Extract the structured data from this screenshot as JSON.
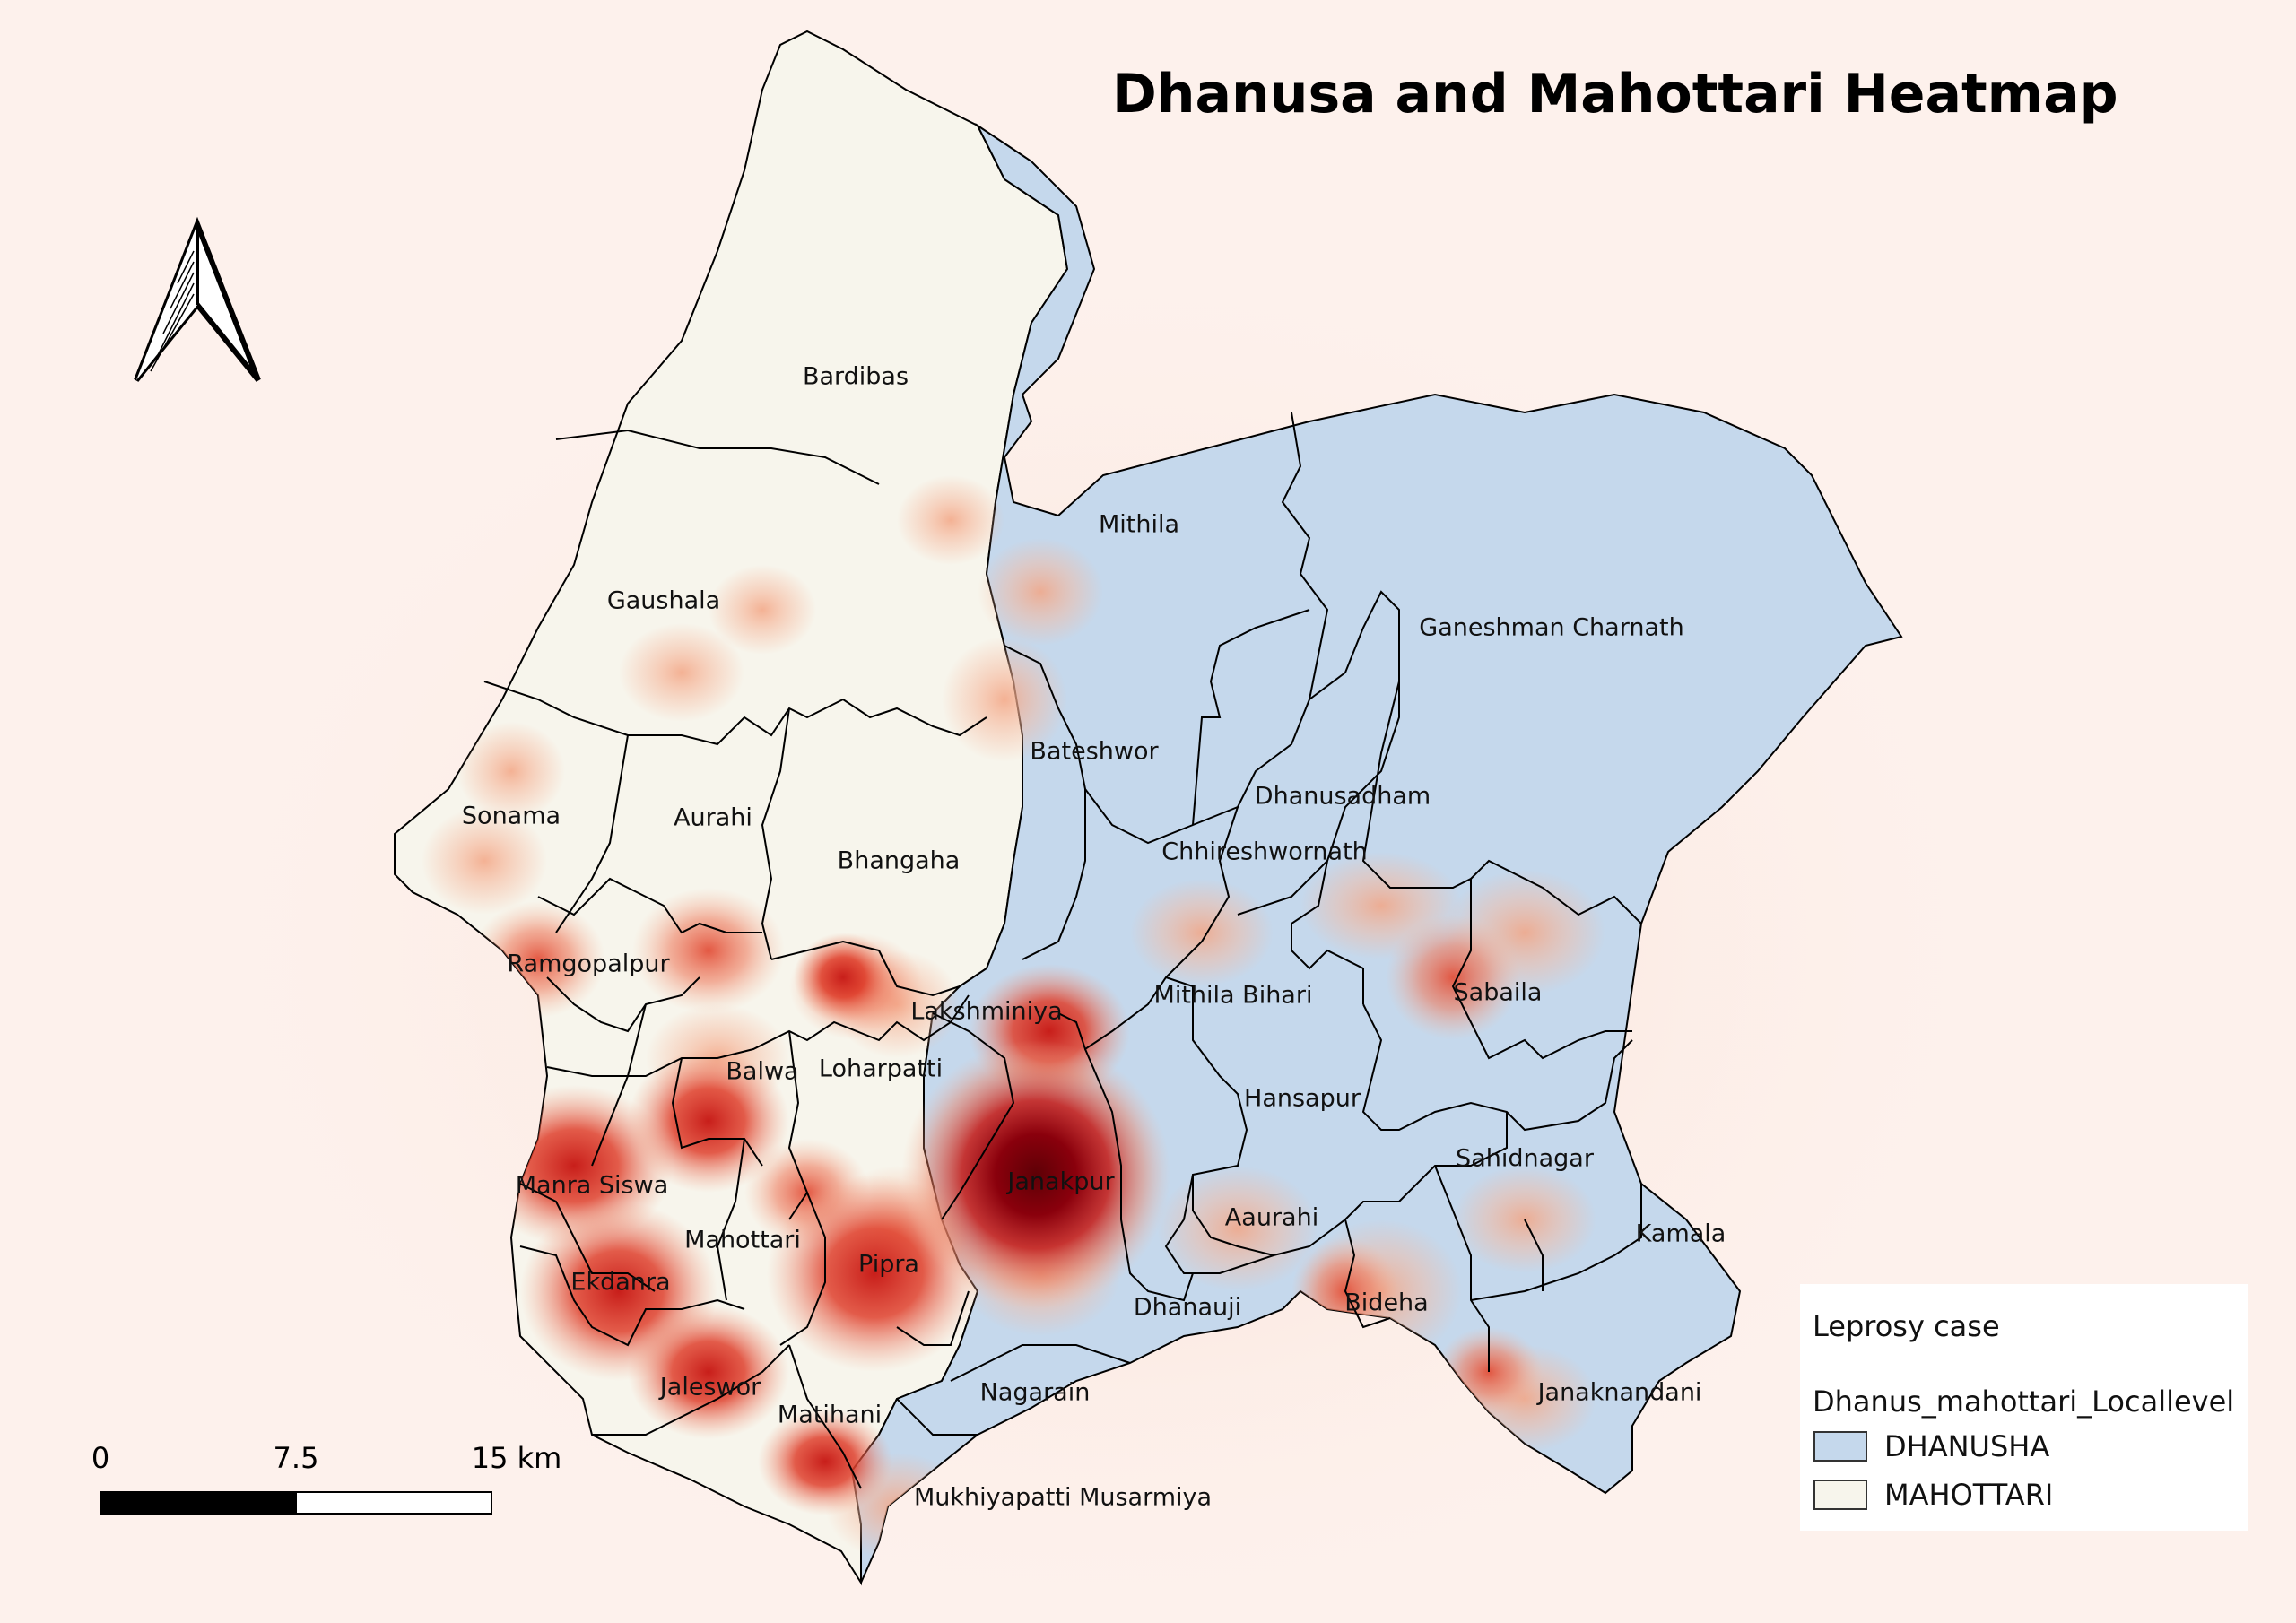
{
  "title": "Dhanusa and Mahottari Heatmap",
  "north_arrow": {
    "icon": "north-arrow-icon"
  },
  "colors": {
    "page_background": "#fdf1ec",
    "dhanusha_fill": "#c5d8ec",
    "mahottari_fill": "#f7f5ec",
    "boundary": "#000000",
    "heat_low": "#f6b89d",
    "heat_mid": "#dc3d2a",
    "heat_high": "#620006"
  },
  "places": {
    "bardibas": "Bardibas",
    "mithila": "Mithila",
    "gaushala": "Gaushala",
    "ganeshman_charnath": "Ganeshman Charnath",
    "bateshwor": "Bateshwor",
    "dhanusadham": "Dhanusadham",
    "sonama": "Sonama",
    "aurahi": "Aurahi",
    "bhangaha": "Bhangaha",
    "chhireshwornath": "Chhireshwornath",
    "ramgopalpur": "Ramgopalpur",
    "sabaila": "Sabaila",
    "lakshminiya": "Lakshminiya",
    "mithila_bihari": "Mithila Bihari",
    "balwa": "Balwa",
    "loharpatti": "Loharpatti",
    "hansapur": "Hansapur",
    "manra_siswa": "Manra Siswa",
    "janakpur": "Janakpur",
    "sahidnagar": "Sahidnagar",
    "mahottari": "Mahottari",
    "aaurahi": "Aaurahi",
    "kamala": "Kamala",
    "ekdanra": "Ekdanra",
    "pipra": "Pipra",
    "dhanauji": "Dhanauji",
    "bideha": "Bideha",
    "jaleswor": "Jaleswor",
    "nagarain": "Nagarain",
    "janaknandani": "Janaknandani",
    "matihani": "Matihani",
    "mukhiyapatti_musarmiya": "Mukhiyapatti Musarmiya"
  },
  "legend": {
    "title": "Leprosy case",
    "layer": "Dhanus_mahottari_Locallevel",
    "items": [
      {
        "label": "DHANUSHA",
        "color": "#c5d8ec"
      },
      {
        "label": "MAHOTTARI",
        "color": "#f7f5ec"
      }
    ]
  },
  "scale_bar": {
    "labels": [
      "0",
      "7.5",
      "15 km"
    ]
  }
}
